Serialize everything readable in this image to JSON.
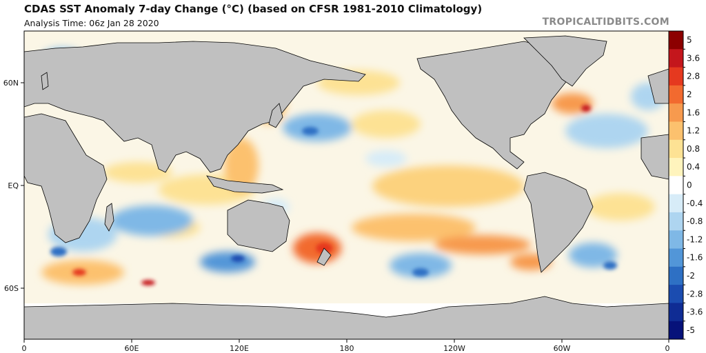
{
  "header": {
    "title": "CDAS SST Anomaly 7-day Change (°C) (based on CFSR 1981-2010 Climatology)",
    "analysis_time": "Analysis Time: 06z Jan 28 2020",
    "brand": "TROPICALTIDBITS.COM"
  },
  "map": {
    "lon_labels": [
      "0",
      "60E",
      "120E",
      "180",
      "120W",
      "60W",
      "0"
    ],
    "lat_labels": [
      "60N",
      "EQ",
      "60S"
    ],
    "land_color": "#c0c0c0",
    "coast_color": "#000000"
  },
  "colorbar": {
    "labels": [
      "5",
      "3.6",
      "2.8",
      "2",
      "1.6",
      "1.2",
      "0.8",
      "0.4",
      "0",
      "-0.4",
      "-0.8",
      "-1.2",
      "-1.6",
      "-2",
      "-2.8",
      "-3.6",
      "-5"
    ],
    "colors": [
      "#8c0000",
      "#c4161c",
      "#e5391f",
      "#f26a2f",
      "#f79a4e",
      "#fcc16e",
      "#fde294",
      "#fff4bd",
      "#ffffff",
      "#d7ecf8",
      "#aed5f0",
      "#7fb8e6",
      "#5296d8",
      "#2e70c4",
      "#1b4cb0",
      "#0f2c94",
      "#06127a"
    ]
  }
}
